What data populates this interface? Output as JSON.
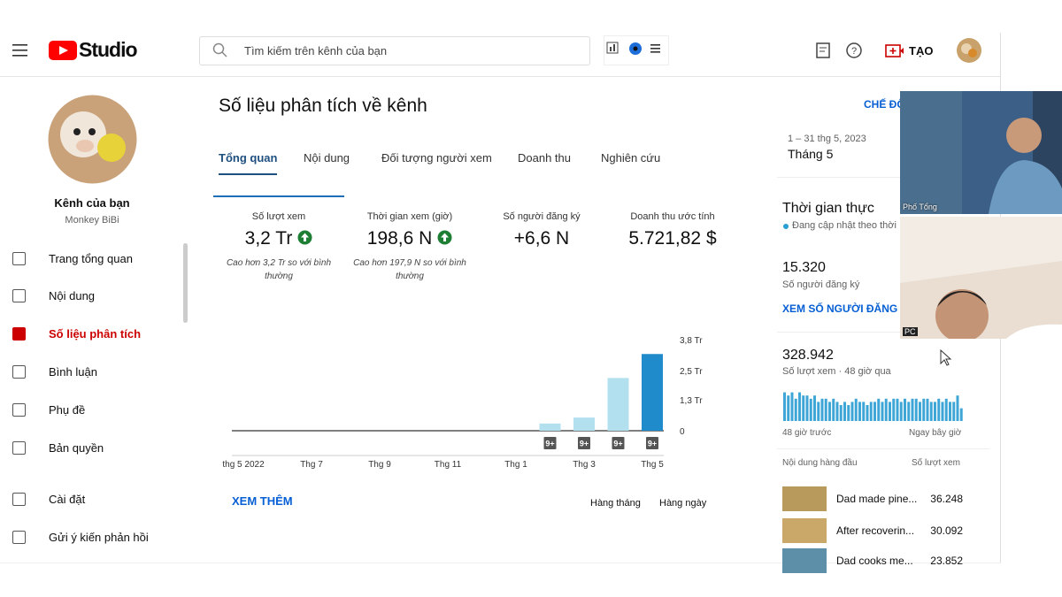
{
  "header": {
    "logo": "Studio",
    "search_placeholder": "Tìm kiếm trên kênh của bạn",
    "create": "TẠO"
  },
  "sidebar": {
    "channel_title": "Kênh của bạn",
    "channel_name": "Monkey BiBi",
    "menu": [
      "Trang tổng quan",
      "Nội dung",
      "Số liệu phân tích",
      "Bình luận",
      "Phụ đề",
      "Bản quyền",
      "Cài đặt",
      "Gửi ý kiến phản hồi"
    ],
    "active": 2
  },
  "main": {
    "title": "Số liệu phân tích về kênh",
    "tabs": [
      "Tổng quan",
      "Nội dung",
      "Đối tượng người xem",
      "Doanh thu",
      "Nghiên cứu"
    ],
    "active_tab": 0,
    "metrics": [
      {
        "label": "Số lượt xem",
        "value": "3,2 Tr",
        "note": "Cao hơn 3,2 Tr so với bình thường",
        "trend": "up"
      },
      {
        "label": "Thời gian xem (giờ)",
        "value": "198,6 N",
        "note": "Cao hơn 197,9 N so với bình thường",
        "trend": "up"
      },
      {
        "label": "Số người đăng ký",
        "value": "+6,6 N"
      },
      {
        "label": "Doanh thu ước tính",
        "value": "5.721,82 $"
      }
    ],
    "chart": {
      "type": "bar",
      "categories": [
        "thg 5 2022",
        null,
        "Thg 7",
        null,
        "Thg 9",
        null,
        "Thg 11",
        null,
        "Thg 1",
        null,
        "Thg 3",
        null,
        "Thg 5"
      ],
      "values": [
        0,
        0,
        0,
        0,
        0,
        0,
        0,
        0,
        0,
        0.3,
        0.55,
        2.2,
        3.2
      ],
      "badges": [
        null,
        null,
        null,
        null,
        null,
        null,
        null,
        null,
        null,
        "9+",
        "9+",
        "9+",
        "9+"
      ],
      "color": "#b3e0ee",
      "highlight_color": "#1f8bcb",
      "ylim": [
        0,
        3.8
      ],
      "yticks": [
        0,
        {
          "value": 1.3,
          "label": "1,3 Tr"
        },
        {
          "value": 2.5,
          "label": "2,5 Tr"
        },
        {
          "value": 3.8,
          "label": "3,8 Tr"
        }
      ]
    },
    "see_more": "XEM THÊM",
    "period_options": [
      "Hàng tháng",
      "Hàng ngày"
    ]
  },
  "right": {
    "mode": "CHẾ ĐỘ",
    "date_range": "1 – 31 thg 5, 2023",
    "period": "Tháng 5",
    "realtime_title": "Thời gian thực",
    "realtime_note": "Đang cập nhật theo thời",
    "subscribers": "15.320",
    "subscribers_label": "Số người đăng ký",
    "see_subscribers": "XEM SỐ NGƯỜI ĐĂNG K",
    "views": "328.942",
    "views_label": "Số lượt xem · 48 giờ qua",
    "spark": {
      "type": "bar",
      "color": "#3ea6d6",
      "ylim": [
        0,
        10
      ],
      "values": [
        9,
        8,
        9,
        7,
        9,
        8,
        8,
        7,
        8,
        6,
        7,
        7,
        6,
        7,
        6,
        5,
        6,
        5,
        6,
        7,
        6,
        6,
        5,
        6,
        6,
        7,
        6,
        7,
        6,
        7,
        7,
        6,
        7,
        6,
        7,
        7,
        6,
        7,
        7,
        6,
        6,
        7,
        6,
        7,
        6,
        6,
        8,
        4
      ]
    },
    "spark_start": "48 giờ trước",
    "spark_end": "Ngay bây giờ",
    "top_content": "Nội dung hàng đầu",
    "top_views_label": "Số lượt xem",
    "videos": [
      {
        "title": "Dad made pine...",
        "views": "36.248"
      },
      {
        "title": "After recoverin...",
        "views": "30.092"
      },
      {
        "title": "Dad cooks me...",
        "views": "23.852"
      }
    ]
  },
  "overlays": [
    "Phố Tổng",
    "PC"
  ]
}
